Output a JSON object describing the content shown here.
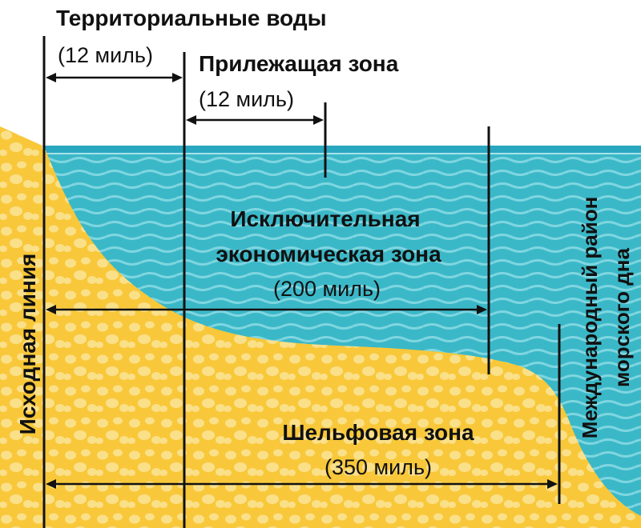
{
  "labels": {
    "territorial_waters": "Территориальные воды",
    "territorial_waters_distance": "(12 миль)",
    "contiguous_zone": "Прилежащая зона",
    "contiguous_zone_distance": "(12 миль)",
    "eez_line1": "Исключительная",
    "eez_line2": "экономическая зона",
    "eez_distance": "(200 миль)",
    "shelf_zone": "Шельфовая зона",
    "shelf_distance": "(350 миль)",
    "baseline": "Исходная линия",
    "seabed_line1": "Международный район",
    "seabed_line2": "морского дна"
  },
  "colors": {
    "sand": "#f8c83a",
    "sand_dots": "#fbe08a",
    "sea": "#3bb8c8",
    "sea_waves": "#7fd6e0",
    "sea_surface": "#2aa7c0",
    "ink": "#111111"
  }
}
